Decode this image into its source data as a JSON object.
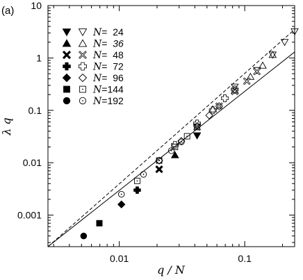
{
  "chart_data": {
    "type": "scatter",
    "panel_label": "(a)",
    "title": "",
    "xlabel": "q / N",
    "ylabel": "λ q",
    "x_scale": "log",
    "y_scale": "log",
    "xlim": [
      0.0027,
      0.25
    ],
    "ylim": [
      0.00025,
      10
    ],
    "x_ticks": [
      {
        "value": 0.01,
        "label": "0.01"
      },
      {
        "value": 0.1,
        "label": "0.1"
      }
    ],
    "y_ticks": [
      {
        "value": 0.001,
        "label": "0.001"
      },
      {
        "value": 0.01,
        "label": "0.01"
      },
      {
        "value": 0.1,
        "label": "0.1"
      },
      {
        "value": 1,
        "label": "1"
      },
      {
        "value": 10,
        "label": "10"
      }
    ],
    "legend_position": "top-left",
    "reference_lines": [
      {
        "style": "solid",
        "points": [
          [
            0.0027,
            0.00025
          ],
          [
            0.25,
            1.3
          ]
        ]
      },
      {
        "style": "dashed",
        "points": [
          [
            0.0027,
            0.00025
          ],
          [
            0.25,
            3.5
          ]
        ]
      }
    ],
    "series": [
      {
        "name": "N=  24",
        "marker": "triangle-down",
        "filled": [
          [
            0.0417,
            0.033
          ]
        ],
        "open": [
          [
            0.0833,
            0.28
          ],
          [
            0.125,
            0.58
          ],
          [
            0.167,
            1.15
          ],
          [
            0.208,
            2.0
          ],
          [
            0.25,
            3.2
          ]
        ]
      },
      {
        "name": "N=  36",
        "name_italic": true,
        "marker": "triangle-up",
        "filled": [
          [
            0.0278,
            0.014
          ]
        ],
        "open": [
          [
            0.0556,
            0.105
          ],
          [
            0.0833,
            0.24
          ],
          [
            0.111,
            0.44
          ],
          [
            0.139,
            0.72
          ],
          [
            0.167,
            1.15
          ]
        ]
      },
      {
        "name": "N=  48",
        "marker": "cross",
        "filled": [
          [
            0.0208,
            0.0075
          ]
        ],
        "open": [
          [
            0.0417,
            0.048
          ],
          [
            0.0625,
            0.12
          ],
          [
            0.0833,
            0.23
          ],
          [
            0.104,
            0.36
          ],
          [
            0.125,
            0.55
          ]
        ]
      },
      {
        "name": "N=  72",
        "marker": "plus",
        "filled": [
          [
            0.0139,
            0.003
          ]
        ],
        "open": [
          [
            0.0278,
            0.022
          ],
          [
            0.0417,
            0.056
          ],
          [
            0.0556,
            0.1
          ],
          [
            0.0694,
            0.17
          ],
          [
            0.0833,
            0.25
          ]
        ]
      },
      {
        "name": "N=  96",
        "marker": "diamond",
        "filled": [
          [
            0.0104,
            0.0016
          ]
        ],
        "open": [
          [
            0.0208,
            0.011
          ],
          [
            0.03125,
            0.026
          ],
          [
            0.0417,
            0.05
          ],
          [
            0.0521,
            0.08
          ],
          [
            0.0625,
            0.12
          ]
        ]
      },
      {
        "name": "N=144",
        "marker": "square",
        "filled": [
          [
            0.00694,
            0.0007
          ]
        ],
        "open": [
          [
            0.0139,
            0.0045
          ],
          [
            0.0208,
            0.011
          ],
          [
            0.0278,
            0.02
          ],
          [
            0.0347,
            0.032
          ],
          [
            0.0417,
            0.048
          ]
        ]
      },
      {
        "name": "N=192",
        "marker": "circle",
        "filled": [
          [
            0.0052,
            0.0004
          ]
        ],
        "open": [
          [
            0.0104,
            0.0025
          ],
          [
            0.0156,
            0.006
          ],
          [
            0.0208,
            0.011
          ],
          [
            0.026,
            0.017
          ],
          [
            0.03125,
            0.025
          ]
        ]
      }
    ]
  }
}
